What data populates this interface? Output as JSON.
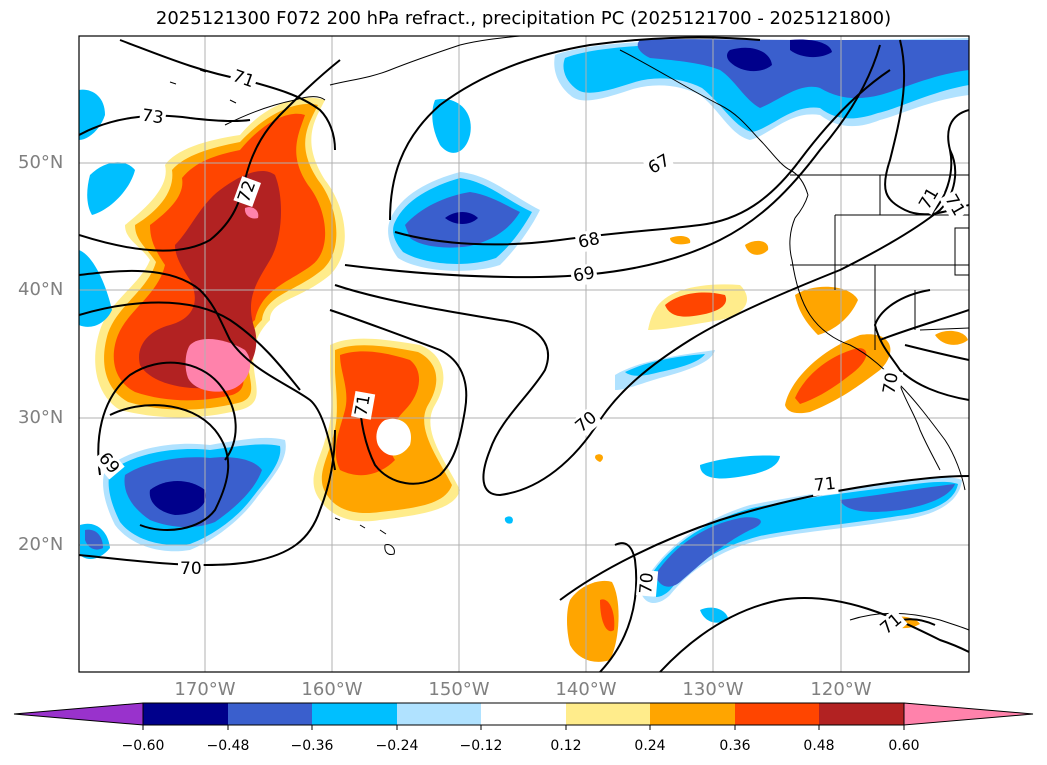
{
  "title": "2025121300 F072 200 hPa refract., precipitation PC (2025121700 - 2025121800)",
  "lat_labels": [
    "50°N",
    "40°N",
    "30°N",
    "20°N"
  ],
  "lon_labels": [
    "170°W",
    "160°W",
    "150°W",
    "140°W",
    "130°W",
    "120°W"
  ],
  "colorbar": {
    "ticks": [
      "−0.60",
      "−0.48",
      "−0.36",
      "−0.24",
      "−0.12",
      "0.12",
      "0.24",
      "0.36",
      "0.48",
      "0.60"
    ],
    "colors": [
      "#9932cc",
      "#00008b",
      "#3a5fcd",
      "#00bfff",
      "#b0e2ff",
      "#ffffff",
      "#ffec8b",
      "#ffa500",
      "#ff4500",
      "#b22222",
      "#ff82ab"
    ]
  },
  "contour_labels": [
    "71",
    "73",
    "72",
    "67",
    "68",
    "69",
    "71",
    "70",
    "69",
    "70",
    "71",
    "70",
    "71",
    "70",
    "71",
    "71"
  ],
  "colors": {
    "frame": "#000000",
    "grid": "#b0b0b0",
    "coast": "#000000",
    "contour": "#000000"
  }
}
